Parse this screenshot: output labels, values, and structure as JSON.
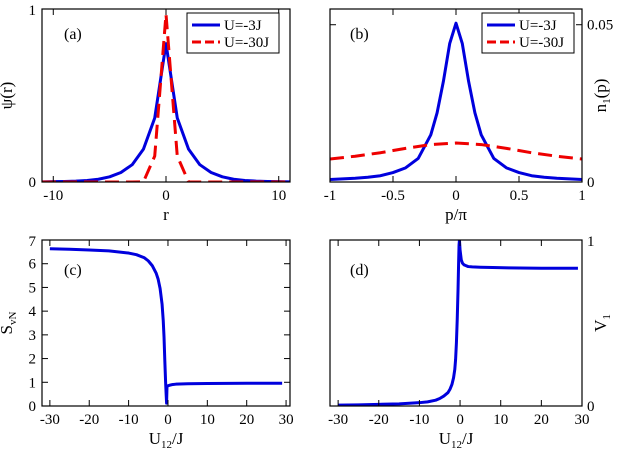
{
  "colors": {
    "blue": "#0000dd",
    "red": "#ee0000",
    "axis": "#000000"
  },
  "chart_data": [
    {
      "id": "a",
      "type": "line",
      "panel_label": "(a)",
      "xlabel": "r",
      "ylabel": "ψ(r)",
      "ylabel_side": "left",
      "xlim": [
        -11,
        11
      ],
      "ylim": [
        0,
        1
      ],
      "xticks": [
        {
          "v": -10,
          "t": "-10"
        },
        {
          "v": 0,
          "t": "0"
        },
        {
          "v": 10,
          "t": "10"
        }
      ],
      "yticks": [
        {
          "v": 0,
          "t": "0"
        },
        {
          "v": 1,
          "t": "1"
        }
      ],
      "legend": {
        "position": "top-right",
        "entries": [
          "U=-3J",
          "U=-30J"
        ]
      },
      "series": [
        {
          "name": "U=-3J",
          "style": "solid",
          "color": "blue",
          "x": [
            -11,
            -10,
            -9,
            -8,
            -7,
            -6,
            -5,
            -4,
            -3,
            -2,
            -1,
            0,
            1,
            2,
            3,
            4,
            5,
            6,
            7,
            8,
            9,
            10,
            11
          ],
          "y": [
            0.001,
            0.002,
            0.003,
            0.005,
            0.009,
            0.016,
            0.03,
            0.055,
            0.1,
            0.19,
            0.37,
            0.8,
            0.37,
            0.19,
            0.1,
            0.055,
            0.03,
            0.016,
            0.009,
            0.005,
            0.003,
            0.002,
            0.001
          ]
        },
        {
          "name": "U=-30J",
          "style": "dashed",
          "color": "red",
          "x": [
            -11,
            -10,
            -9,
            -8,
            -7,
            -6,
            -5,
            -4,
            -3,
            -2,
            -1,
            0,
            1,
            2,
            3,
            4,
            5,
            6,
            7,
            8,
            9,
            10,
            11
          ],
          "y": [
            0,
            0,
            0,
            0,
            0,
            0,
            0,
            0,
            0,
            0.001,
            0.15,
            0.97,
            0.15,
            0.001,
            0,
            0,
            0,
            0,
            0,
            0,
            0,
            0,
            0
          ]
        }
      ]
    },
    {
      "id": "b",
      "type": "line",
      "panel_label": "(b)",
      "xlabel": "p/π",
      "ylabel": "n",
      "ylabel_sub": "1",
      "ylabel_tail": "(p)",
      "ylabel_side": "right",
      "xlim": [
        -1,
        1
      ],
      "ylim": [
        0,
        0.055
      ],
      "xticks": [
        {
          "v": -1,
          "t": "-1"
        },
        {
          "v": -0.5,
          "t": "-0.5"
        },
        {
          "v": 0,
          "t": "0"
        },
        {
          "v": 0.5,
          "t": "0.5"
        },
        {
          "v": 1,
          "t": "1"
        }
      ],
      "yticks": [
        {
          "v": 0,
          "t": "0"
        },
        {
          "v": 0.05,
          "t": "0.05"
        }
      ],
      "legend": {
        "position": "top-right",
        "entries": [
          "U=-3J",
          "U=-30J"
        ]
      },
      "series": [
        {
          "name": "U=-3J",
          "style": "solid",
          "color": "blue",
          "x": [
            -1,
            -0.9,
            -0.8,
            -0.7,
            -0.6,
            -0.5,
            -0.4,
            -0.3,
            -0.2,
            -0.15,
            -0.1,
            -0.05,
            0,
            0.05,
            0.1,
            0.15,
            0.2,
            0.3,
            0.4,
            0.5,
            0.6,
            0.7,
            0.8,
            0.9,
            1
          ],
          "y": [
            0.0008,
            0.001,
            0.0012,
            0.0015,
            0.002,
            0.003,
            0.0045,
            0.0075,
            0.015,
            0.022,
            0.032,
            0.044,
            0.0505,
            0.044,
            0.032,
            0.022,
            0.015,
            0.0075,
            0.0045,
            0.003,
            0.002,
            0.0015,
            0.0012,
            0.001,
            0.0008
          ]
        },
        {
          "name": "U=-30J",
          "style": "dashed",
          "color": "red",
          "x": [
            -1,
            -0.8,
            -0.6,
            -0.4,
            -0.2,
            0,
            0.2,
            0.4,
            0.6,
            0.8,
            1
          ],
          "y": [
            0.0073,
            0.0082,
            0.0093,
            0.0107,
            0.0119,
            0.0124,
            0.0119,
            0.0107,
            0.0093,
            0.0082,
            0.0073
          ]
        }
      ]
    },
    {
      "id": "c",
      "type": "line",
      "panel_label": "(c)",
      "xlabel": "U",
      "xlabel_sub": "12",
      "xlabel_tail": "/J",
      "ylabel": "S",
      "ylabel_sub": "vN",
      "ylabel_tail": "",
      "ylabel_side": "left",
      "xlim": [
        -32,
        31
      ],
      "ylim": [
        0,
        7
      ],
      "xticks": [
        {
          "v": -30,
          "t": "-30"
        },
        {
          "v": -20,
          "t": "-20"
        },
        {
          "v": -10,
          "t": "-10"
        },
        {
          "v": 0,
          "t": "0"
        },
        {
          "v": 10,
          "t": "10"
        },
        {
          "v": 20,
          "t": "20"
        },
        {
          "v": 30,
          "t": "30"
        }
      ],
      "yticks": [
        {
          "v": 0,
          "t": "0"
        },
        {
          "v": 1,
          "t": "1"
        },
        {
          "v": 2,
          "t": "2"
        },
        {
          "v": 3,
          "t": "3"
        },
        {
          "v": 4,
          "t": "4"
        },
        {
          "v": 5,
          "t": "5"
        },
        {
          "v": 6,
          "t": "6"
        },
        {
          "v": 7,
          "t": "7"
        }
      ],
      "series": [
        {
          "name": "S_vN",
          "style": "solid",
          "color": "blue",
          "x": [
            -30,
            -25,
            -20,
            -15,
            -10,
            -8,
            -6,
            -5,
            -4,
            -3,
            -2.5,
            -2,
            -1.5,
            -1.2,
            -1,
            -0.8,
            -0.6,
            -0.45,
            -0.35,
            -0.25,
            0,
            0.5,
            1,
            2,
            5,
            10,
            20,
            29
          ],
          "y": [
            6.63,
            6.61,
            6.58,
            6.54,
            6.45,
            6.38,
            6.25,
            6.12,
            5.92,
            5.6,
            5.35,
            4.95,
            4.3,
            3.6,
            2.9,
            1.9,
            1.0,
            0.45,
            0.12,
            0.8,
            0.85,
            0.88,
            0.9,
            0.92,
            0.94,
            0.95,
            0.96,
            0.96
          ]
        }
      ]
    },
    {
      "id": "d",
      "type": "line",
      "panel_label": "(d)",
      "xlabel": "U",
      "xlabel_sub": "12",
      "xlabel_tail": "/J",
      "ylabel": "V",
      "ylabel_sub": "1",
      "ylabel_tail": "",
      "ylabel_side": "right",
      "xlim": [
        -32,
        30
      ],
      "ylim": [
        0,
        1
      ],
      "xticks": [
        {
          "v": -30,
          "t": "-30"
        },
        {
          "v": -20,
          "t": "-20"
        },
        {
          "v": -10,
          "t": "-10"
        },
        {
          "v": 0,
          "t": "0"
        },
        {
          "v": 10,
          "t": "10"
        },
        {
          "v": 20,
          "t": "20"
        },
        {
          "v": 30,
          "t": "30"
        }
      ],
      "yticks": [
        {
          "v": 0,
          "t": "0"
        },
        {
          "v": 1,
          "t": "1"
        }
      ],
      "series": [
        {
          "name": "V_1",
          "style": "solid",
          "color": "blue",
          "x": [
            -30,
            -25,
            -20,
            -15,
            -10,
            -8,
            -6,
            -5,
            -4,
            -3,
            -2.5,
            -2,
            -1.6,
            -1.3,
            -1.1,
            -0.9,
            -0.7,
            -0.5,
            -0.35,
            -0.25,
            -0.15,
            0,
            0.3,
            0.6,
            1,
            1.5,
            2,
            3,
            5,
            8,
            12,
            20,
            29
          ],
          "y": [
            0.005,
            0.007,
            0.01,
            0.013,
            0.02,
            0.025,
            0.035,
            0.045,
            0.06,
            0.08,
            0.1,
            0.13,
            0.17,
            0.22,
            0.28,
            0.38,
            0.52,
            0.7,
            0.87,
            0.97,
            1.0,
            0.94,
            0.88,
            0.86,
            0.85,
            0.845,
            0.84,
            0.838,
            0.836,
            0.834,
            0.832,
            0.83,
            0.83
          ]
        }
      ]
    }
  ]
}
